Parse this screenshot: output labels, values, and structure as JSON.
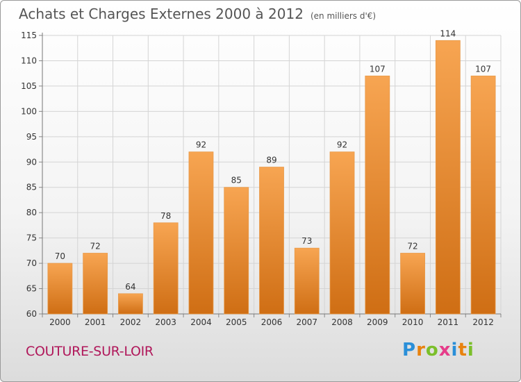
{
  "header": {
    "title": "Achats et Charges Externes 2000 à 2012",
    "subtitle": "(en milliers d'€)"
  },
  "footer": {
    "town": "COUTURE-SUR-LOIR",
    "logo": "Proxiti"
  },
  "colors": {
    "bar_light": "#f7a552",
    "bar_dark": "#cf6e14",
    "grid": "#d4d4d4",
    "town": "#b0175a"
  },
  "chart_data": {
    "type": "bar",
    "title": "Achats et Charges Externes 2000 à 2012",
    "subtitle": "(en milliers d'€)",
    "xlabel": "",
    "ylabel": "",
    "categories": [
      "2000",
      "2001",
      "2002",
      "2003",
      "2004",
      "2005",
      "2006",
      "2007",
      "2008",
      "2009",
      "2010",
      "2011",
      "2012"
    ],
    "values": [
      70,
      72,
      64,
      78,
      92,
      85,
      89,
      73,
      92,
      107,
      72,
      114,
      107
    ],
    "ylim": [
      60,
      115
    ],
    "yticks": [
      60,
      65,
      70,
      75,
      80,
      85,
      90,
      95,
      100,
      105,
      110,
      115
    ],
    "grid": true,
    "legend": "none"
  }
}
